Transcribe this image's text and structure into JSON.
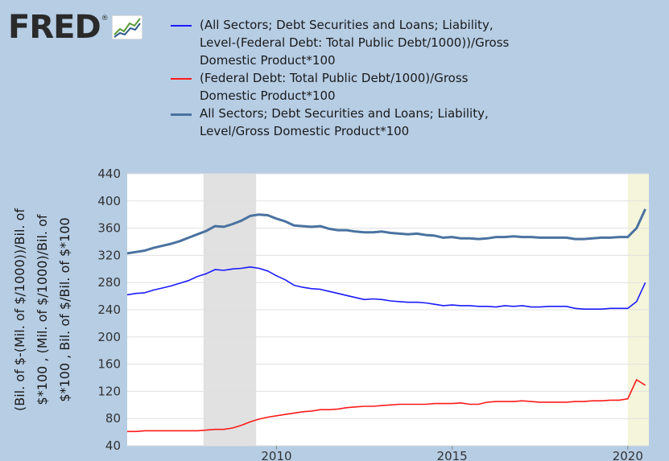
{
  "logo": {
    "text": "FRED",
    "reg": "®",
    "icon": "fred-chart-icon"
  },
  "colors": {
    "background": "#b6cde4",
    "plot_bg": "#ffffff",
    "recession": "#e1e1e1",
    "highlight": "#f5f5dc",
    "series_blue": "#1a1aff",
    "series_red": "#ff1a1a",
    "series_steel": "#4a72a0",
    "grid": "#e0e0e0"
  },
  "chart_data": {
    "type": "line",
    "y_axis_title": [
      "(Bil. of $-(Mil. of $/1000))/Bil. of",
      "$*100 , (Mil. of $/1000)/Bil. of",
      "$*100 , Bil. of $/Bil. of $*100"
    ],
    "y_ticks": [
      40,
      80,
      120,
      160,
      200,
      240,
      280,
      320,
      360,
      400,
      440
    ],
    "ylim": [
      40,
      440
    ],
    "x_ticks": [
      2010,
      2015,
      2020
    ],
    "xlim": [
      2005.75,
      2020.6
    ],
    "recessions": [
      [
        2007.92,
        2009.42
      ]
    ],
    "highlight": [
      2020.0,
      2020.6
    ],
    "series": [
      {
        "name": "(All Sectors; Debt Securities and Loans; Liability, Level-(Federal Debt: Total Public Debt/1000))/Gross Domestic Product*100",
        "color": "#1a1aff",
        "width": 1.6,
        "x": [
          2005.75,
          2006.0,
          2006.25,
          2006.5,
          2006.75,
          2007.0,
          2007.25,
          2007.5,
          2007.75,
          2008.0,
          2008.25,
          2008.5,
          2008.75,
          2009.0,
          2009.25,
          2009.5,
          2009.75,
          2010.0,
          2010.25,
          2010.5,
          2010.75,
          2011.0,
          2011.25,
          2011.5,
          2011.75,
          2012.0,
          2012.25,
          2012.5,
          2012.75,
          2013.0,
          2013.25,
          2013.5,
          2013.75,
          2014.0,
          2014.25,
          2014.5,
          2014.75,
          2015.0,
          2015.25,
          2015.5,
          2015.75,
          2016.0,
          2016.25,
          2016.5,
          2016.75,
          2017.0,
          2017.25,
          2017.5,
          2017.75,
          2018.0,
          2018.25,
          2018.5,
          2018.75,
          2019.0,
          2019.25,
          2019.5,
          2019.75,
          2020.0,
          2020.25,
          2020.5
        ],
        "y": [
          262,
          264,
          265,
          269,
          272,
          275,
          279,
          283,
          289,
          293,
          299,
          298,
          300,
          301,
          303,
          301,
          297,
          290,
          284,
          276,
          273,
          271,
          270,
          267,
          264,
          261,
          258,
          255,
          256,
          255,
          253,
          252,
          251,
          251,
          250,
          248,
          246,
          247,
          246,
          246,
          245,
          245,
          244,
          246,
          245,
          246,
          244,
          244,
          245,
          245,
          245,
          242,
          241,
          241,
          241,
          242,
          242,
          242,
          252,
          280
        ]
      },
      {
        "name": "(Federal Debt: Total Public Debt/1000)/Gross Domestic Product*100",
        "color": "#ff1a1a",
        "width": 1.6,
        "x": [
          2005.75,
          2006.0,
          2006.25,
          2006.5,
          2006.75,
          2007.0,
          2007.25,
          2007.5,
          2007.75,
          2008.0,
          2008.25,
          2008.5,
          2008.75,
          2009.0,
          2009.25,
          2009.5,
          2009.75,
          2010.0,
          2010.25,
          2010.5,
          2010.75,
          2011.0,
          2011.25,
          2011.5,
          2011.75,
          2012.0,
          2012.25,
          2012.5,
          2012.75,
          2013.0,
          2013.25,
          2013.5,
          2013.75,
          2014.0,
          2014.25,
          2014.5,
          2014.75,
          2015.0,
          2015.25,
          2015.5,
          2015.75,
          2016.0,
          2016.25,
          2016.5,
          2016.75,
          2017.0,
          2017.25,
          2017.5,
          2017.75,
          2018.0,
          2018.25,
          2018.5,
          2018.75,
          2019.0,
          2019.25,
          2019.5,
          2019.75,
          2020.0,
          2020.25,
          2020.5
        ],
        "y": [
          61,
          61,
          62,
          62,
          62,
          62,
          62,
          62,
          62,
          63,
          64,
          64,
          66,
          70,
          75,
          79,
          82,
          84,
          86,
          88,
          90,
          91,
          93,
          93,
          94,
          96,
          97,
          98,
          98,
          99,
          100,
          101,
          101,
          101,
          101,
          102,
          102,
          102,
          103,
          101,
          101,
          104,
          105,
          105,
          105,
          106,
          105,
          104,
          104,
          104,
          104,
          105,
          105,
          106,
          106,
          107,
          107,
          109,
          137,
          129
        ]
      },
      {
        "name": "All Sectors; Debt Securities and Loans; Liability, Level/Gross Domestic Product*100",
        "color": "#4a72a0",
        "width": 3,
        "x": [
          2005.75,
          2006.0,
          2006.25,
          2006.5,
          2006.75,
          2007.0,
          2007.25,
          2007.5,
          2007.75,
          2008.0,
          2008.25,
          2008.5,
          2008.75,
          2009.0,
          2009.25,
          2009.5,
          2009.75,
          2010.0,
          2010.25,
          2010.5,
          2010.75,
          2011.0,
          2011.25,
          2011.5,
          2011.75,
          2012.0,
          2012.25,
          2012.5,
          2012.75,
          2013.0,
          2013.25,
          2013.5,
          2013.75,
          2014.0,
          2014.25,
          2014.5,
          2014.75,
          2015.0,
          2015.25,
          2015.5,
          2015.75,
          2016.0,
          2016.25,
          2016.5,
          2016.75,
          2017.0,
          2017.25,
          2017.5,
          2017.75,
          2018.0,
          2018.25,
          2018.5,
          2018.75,
          2019.0,
          2019.25,
          2019.5,
          2019.75,
          2020.0,
          2020.25,
          2020.5
        ],
        "y": [
          323,
          325,
          327,
          331,
          334,
          337,
          341,
          346,
          351,
          356,
          363,
          362,
          366,
          371,
          378,
          380,
          379,
          374,
          370,
          364,
          363,
          362,
          363,
          359,
          357,
          357,
          355,
          354,
          354,
          355,
          353,
          352,
          351,
          352,
          350,
          349,
          346,
          347,
          345,
          345,
          344,
          345,
          347,
          347,
          348,
          347,
          347,
          346,
          346,
          346,
          346,
          344,
          344,
          345,
          346,
          346,
          347,
          347,
          360,
          388
        ]
      }
    ]
  }
}
